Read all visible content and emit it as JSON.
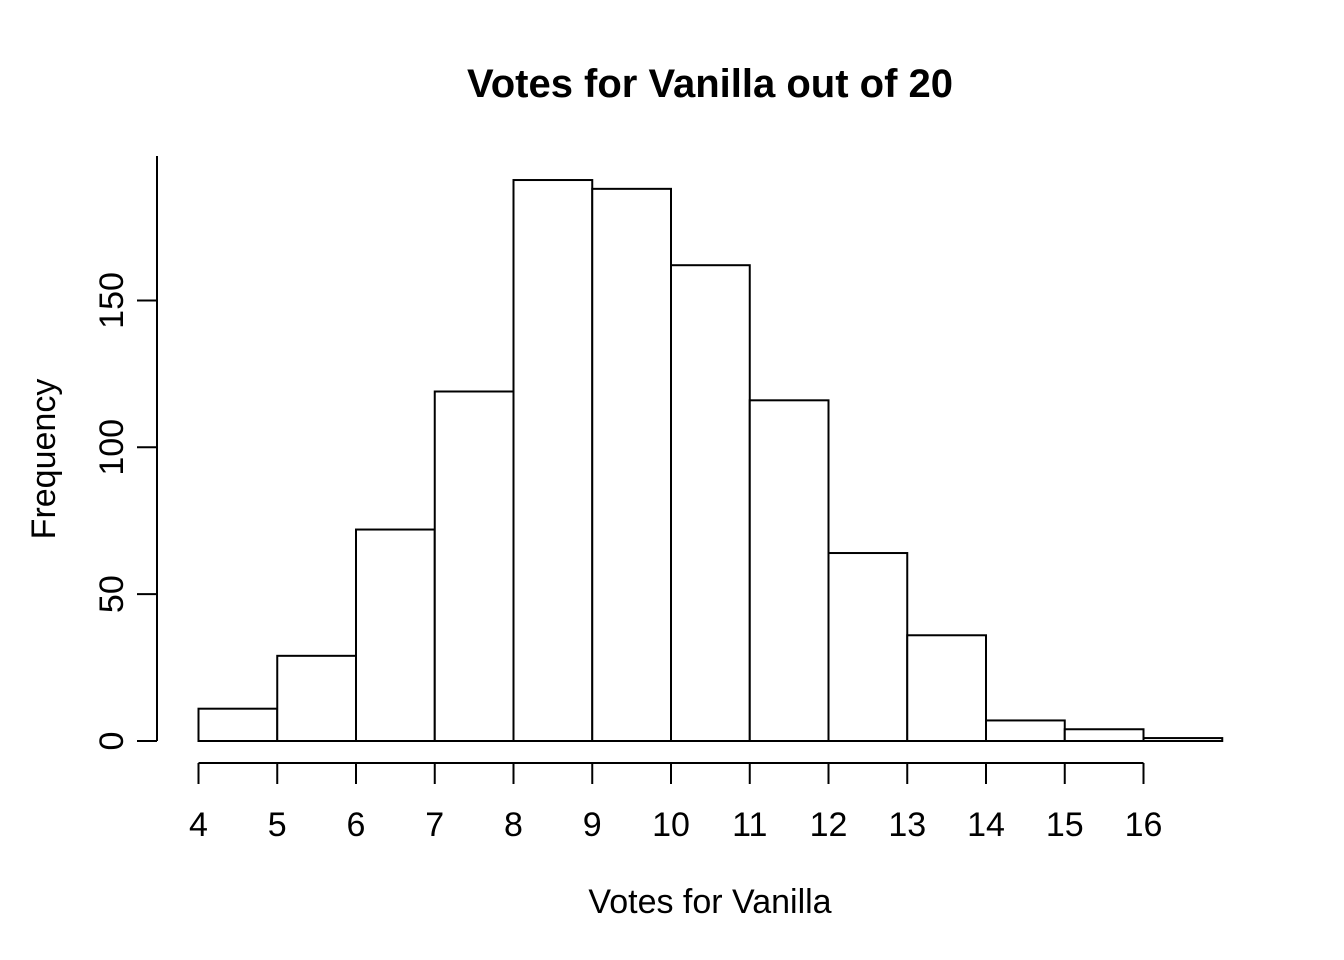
{
  "chart_data": {
    "type": "bar",
    "subtype": "histogram",
    "title": "Votes for Vanilla out of 20",
    "xlabel": "Votes for Vanilla",
    "ylabel": "Frequency",
    "bin_edges": [
      4,
      5,
      6,
      7,
      8,
      9,
      10,
      11,
      12,
      13,
      14,
      15,
      16,
      17
    ],
    "counts": [
      11,
      29,
      72,
      119,
      191,
      188,
      162,
      116,
      64,
      36,
      7,
      4,
      1
    ],
    "x_ticks": [
      4,
      5,
      6,
      7,
      8,
      9,
      10,
      11,
      12,
      13,
      14,
      15,
      16
    ],
    "y_ticks": [
      0,
      50,
      100,
      150
    ],
    "xlim": [
      4,
      17
    ],
    "ylim": [
      0,
      199
    ],
    "grid": "off",
    "legend": "none",
    "bar_fill": "#ffffff",
    "bar_stroke": "#000000",
    "axis_color": "#000000",
    "background": "#ffffff"
  }
}
